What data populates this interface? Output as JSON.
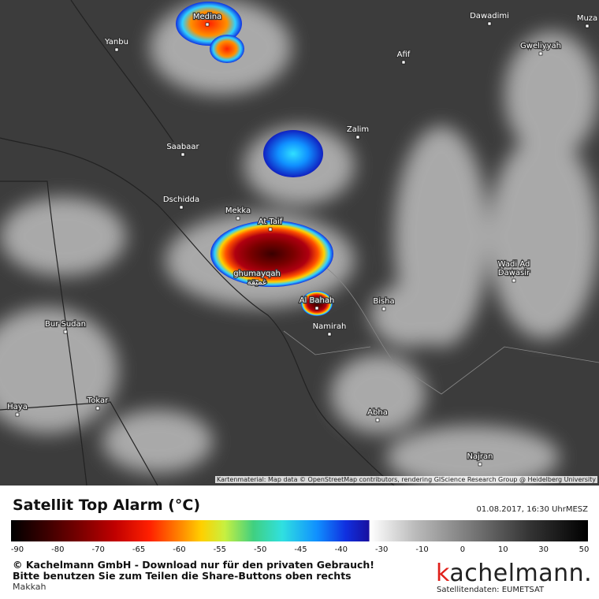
{
  "map": {
    "attribution": "Kartenmaterial: Map data © OpenStreetMap contributors, rendering GIScience Research Group @ Heidelberg University",
    "places": [
      "Medina",
      "Yanbu",
      "Dawadimi",
      "Muza",
      "Gweliyyah",
      "Afif",
      "Zalim",
      "Saabaar",
      "Dschidda",
      "Mekka",
      "At Taif",
      "ghumayqah",
      "غميقة",
      "Al Bahah",
      "Bisha",
      "Namirah",
      "Wadi Ad",
      "Dawasir",
      "Bur Sudan",
      "Haya",
      "Tokar",
      "Abha",
      "Najran"
    ]
  },
  "legend": {
    "title": "Satellit Top Alarm (°C)",
    "date": "01.08.2017, 16:30 UhrMESZ",
    "ticks": [
      -90,
      -80,
      -70,
      -65,
      -60,
      -55,
      -50,
      -45,
      -40,
      -30,
      -10,
      0,
      10,
      30,
      50
    ]
  },
  "footer": {
    "line1": "© Kachelmann GmbH - Download nur für den privaten Gebrauch!",
    "line2": "Bitte benutzen Sie zum Teilen die Share-Buttons oben rechts",
    "region": "Makkah",
    "logo": "kachelmann.",
    "source": "Satellitendaten: EUMETSAT"
  }
}
